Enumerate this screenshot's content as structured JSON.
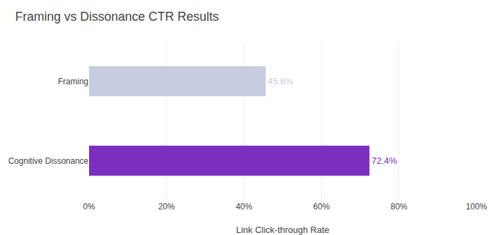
{
  "chart_data": {
    "type": "bar",
    "orientation": "horizontal",
    "title": "Framing vs Dissonance CTR Results",
    "categories": [
      "Cognitive Dissonance",
      "Framing"
    ],
    "values": [
      72.4,
      45.6
    ],
    "value_labels": [
      "72.4%",
      "45.6%"
    ],
    "data_labels": true,
    "colors": [
      "#7B2FBE",
      "#c8cce0"
    ],
    "xlabel": "Link Click-through Rate",
    "xlim": [
      0,
      100
    ],
    "xticks": [
      {
        "value": 0,
        "label": "0%"
      },
      {
        "value": 20,
        "label": "20%"
      },
      {
        "value": 40,
        "label": "40%"
      },
      {
        "value": 60,
        "label": "60%"
      },
      {
        "value": 80,
        "label": "80%"
      },
      {
        "value": 100,
        "label": "100%"
      }
    ],
    "grid": true
  }
}
